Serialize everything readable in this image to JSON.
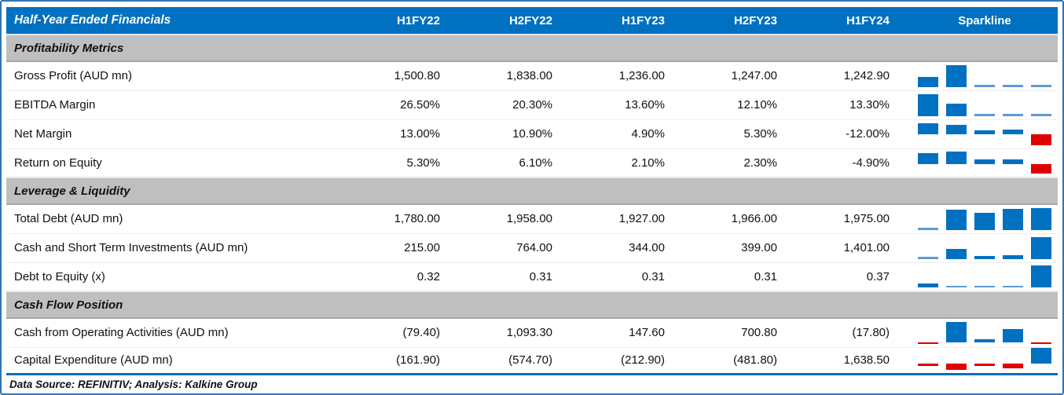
{
  "chart_data": {
    "type": "table",
    "title": "Half-Year Ended Financials",
    "periods": [
      "H1FY22",
      "H2FY22",
      "H1FY23",
      "H2FY23",
      "H1FY24"
    ],
    "sparkline_label": "Sparkline",
    "sections": [
      {
        "title": "Profitability Metrics",
        "rows": [
          {
            "label": "Gross Profit (AUD mn)",
            "display": [
              "1,500.80",
              "1,838.00",
              "1,236.00",
              "1,247.00",
              "1,242.90"
            ],
            "values": [
              1500.8,
              1838.0,
              1236.0,
              1247.0,
              1242.9
            ]
          },
          {
            "label": "EBITDA Margin",
            "display": [
              "26.50%",
              "20.30%",
              "13.60%",
              "12.10%",
              "13.30%"
            ],
            "values": [
              26.5,
              20.3,
              13.6,
              12.1,
              13.3
            ]
          },
          {
            "label": "Net Margin",
            "display": [
              "13.00%",
              "10.90%",
              "4.90%",
              "5.30%",
              "-12.00%"
            ],
            "values": [
              13.0,
              10.9,
              4.9,
              5.3,
              -12.0
            ]
          },
          {
            "label": "Return on Equity",
            "display": [
              "5.30%",
              "6.10%",
              "2.10%",
              "2.30%",
              "-4.90%"
            ],
            "values": [
              5.3,
              6.1,
              2.1,
              2.3,
              -4.9
            ]
          }
        ]
      },
      {
        "title": "Leverage & Liquidity",
        "rows": [
          {
            "label": "Total Debt (AUD mn)",
            "display": [
              "1,780.00",
              "1,958.00",
              "1,927.00",
              "1,966.00",
              "1,975.00"
            ],
            "values": [
              1780.0,
              1958.0,
              1927.0,
              1966.0,
              1975.0
            ]
          },
          {
            "label": "Cash and Short Term Investments (AUD mn)",
            "display": [
              "215.00",
              "764.00",
              "344.00",
              "399.00",
              "1,401.00"
            ],
            "values": [
              215.0,
              764.0,
              344.0,
              399.0,
              1401.0
            ]
          },
          {
            "label": "Debt to Equity (x)",
            "display": [
              "0.32",
              "0.31",
              "0.31",
              "0.31",
              "0.37"
            ],
            "values": [
              0.32,
              0.31,
              0.31,
              0.31,
              0.37
            ]
          }
        ]
      },
      {
        "title": "Cash Flow Position",
        "rows": [
          {
            "label": "Cash from Operating Activities (AUD mn)",
            "display": [
              "(79.40)",
              "1,093.30",
              "147.60",
              "700.80",
              "(17.80)"
            ],
            "values": [
              -79.4,
              1093.3,
              147.6,
              700.8,
              -17.8
            ]
          },
          {
            "label": "Capital Expenditure (AUD mn)",
            "display": [
              "(161.90)",
              "(574.70)",
              "(212.90)",
              "(481.80)",
              "1,638.50"
            ],
            "values": [
              -161.9,
              -574.7,
              -212.9,
              -481.8,
              1638.5
            ]
          }
        ]
      }
    ],
    "sparkline_style": {
      "type": "column",
      "positive_color": "#0070C0",
      "negative_color": "#E00000",
      "min_sliver_color": "#5B9BD5",
      "scaling": "per-row min-to-max, zero axis shown when negatives present"
    },
    "footer_note": "Data Source: REFINITIV; Analysis: Kalkine Group"
  },
  "colors": {
    "header_bg": "#0070C0",
    "header_text": "#FFFFFF",
    "section_bg": "#BFBFBF",
    "frame_border": "#2E75B6",
    "bottom_rule": "#0070C0"
  }
}
